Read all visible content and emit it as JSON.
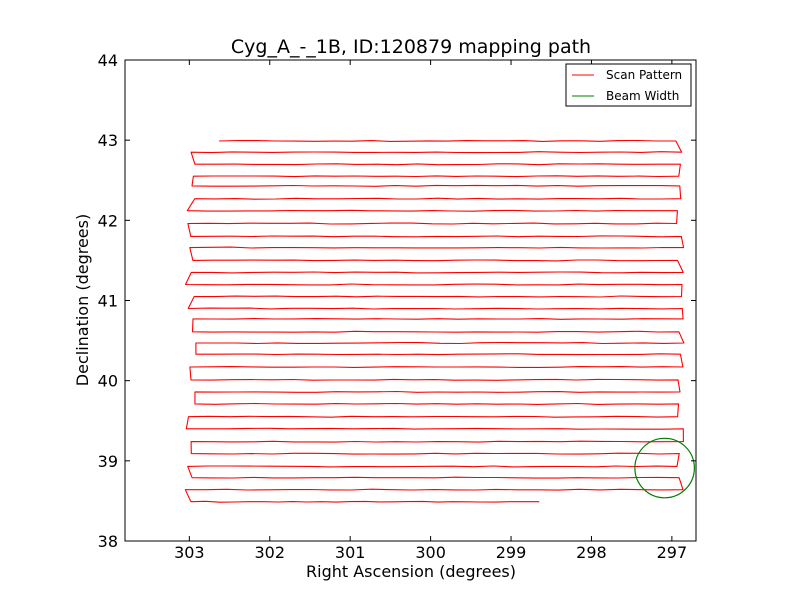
{
  "chart_data": {
    "type": "line",
    "title": "Cyg_A_-_1B, ID:120879 mapping path",
    "xlabel": "Right Ascension (degrees)",
    "ylabel": "Declination (degrees)",
    "xlim": [
      303.8,
      296.7
    ],
    "ylim": [
      38,
      44
    ],
    "x_reversed": true,
    "xticks": [
      303,
      302,
      301,
      300,
      299,
      298,
      297
    ],
    "yticks": [
      38,
      39,
      40,
      41,
      42,
      43,
      44
    ],
    "grid": false,
    "legend_position": "top-right",
    "colors": {
      "scan": "#ff0000",
      "beam": "#007f00"
    },
    "series": [
      {
        "name": "Scan Pattern",
        "color": "#ff0000",
        "x_left": 302.98,
        "x_right": 296.9,
        "x_start": 298.65,
        "y_start": 38.48,
        "x_end": 302.63,
        "y_end": 42.99,
        "row_dec": [
          38.49,
          38.64,
          38.79,
          38.93,
          39.09,
          39.24,
          39.4,
          39.55,
          39.71,
          39.86,
          40.01,
          40.17,
          40.33,
          40.47,
          40.61,
          40.77,
          40.9,
          41.05,
          41.2,
          41.35,
          41.5,
          41.66,
          41.8,
          41.96,
          42.12,
          42.27,
          42.43,
          42.55,
          42.7,
          42.85,
          42.99
        ]
      },
      {
        "name": "Beam Width",
        "color": "#007f00",
        "type": "circle",
        "center": [
          297.09,
          38.91
        ],
        "radius_deg": 0.37
      }
    ]
  }
}
